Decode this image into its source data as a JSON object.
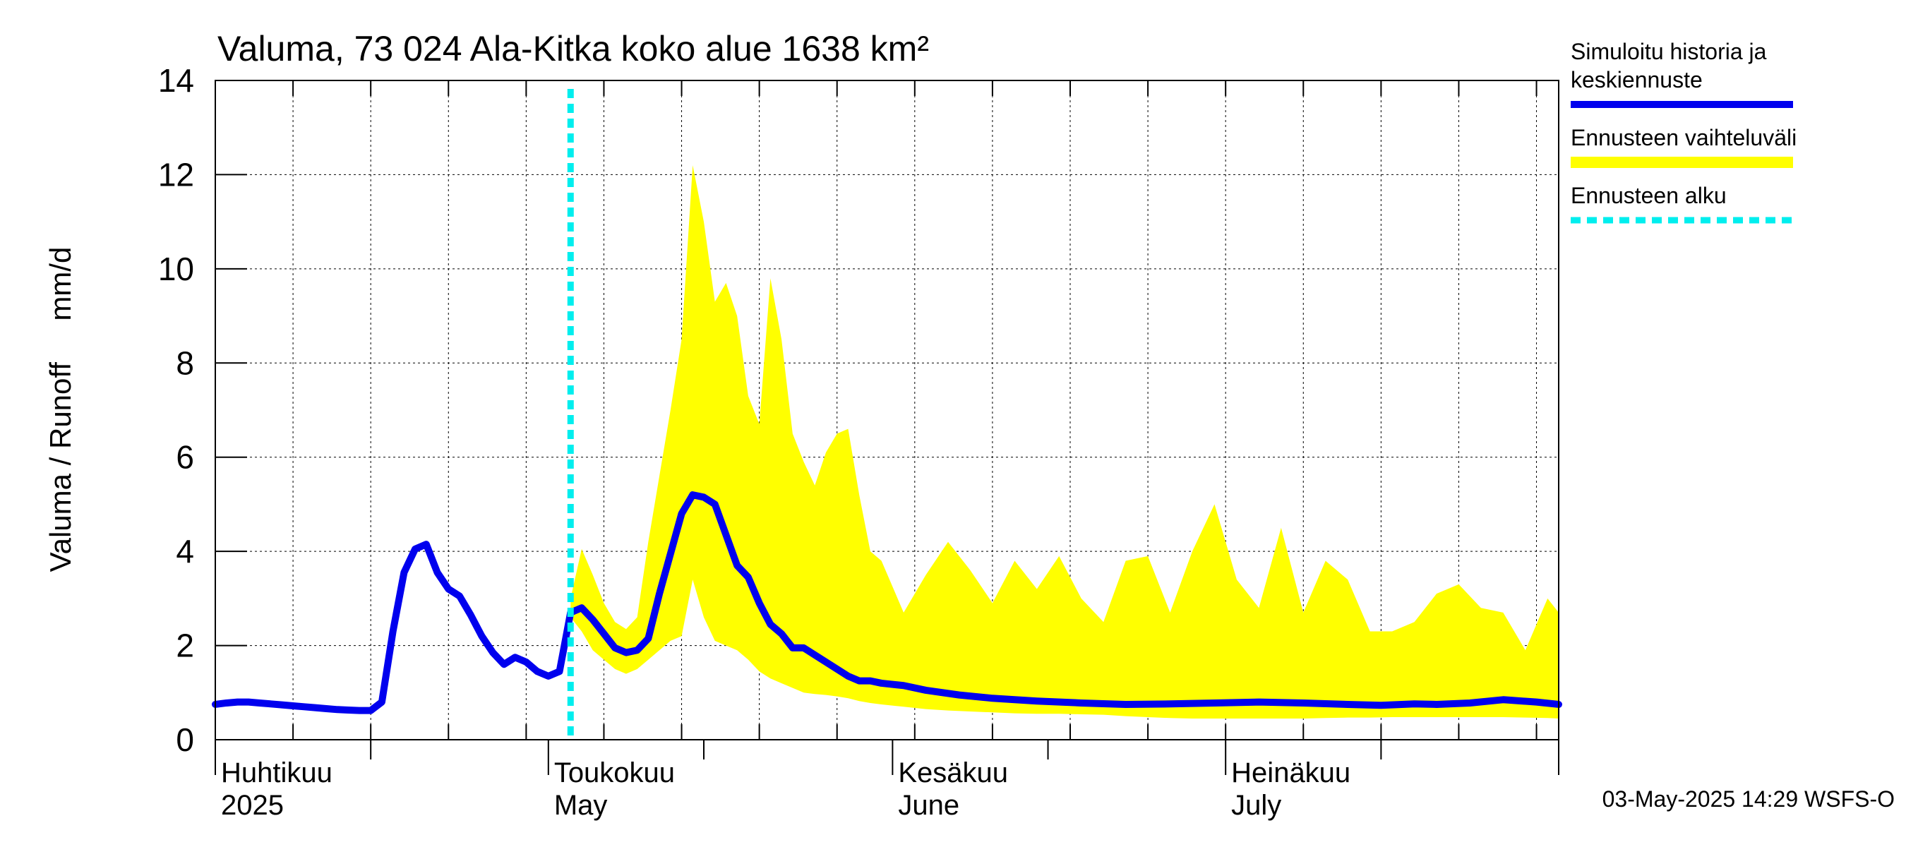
{
  "chart_data": {
    "type": "area",
    "title": "Valuma, 73 024 Ala-Kitka koko alue 1638 km²",
    "ylabel": "Valuma / Runoff     mm/d",
    "ylim": [
      0,
      14
    ],
    "yticks": [
      0,
      2,
      4,
      6,
      8,
      10,
      12,
      14
    ],
    "xlim": [
      "2025-04-01",
      "2025-07-31"
    ],
    "grid": true,
    "legend_position": "right",
    "month_labels": [
      {
        "date": "2025-04-01",
        "line1": "Huhtikuu",
        "line2": "2025"
      },
      {
        "date": "2025-05-01",
        "line1": "Toukokuu",
        "line2": "May"
      },
      {
        "date": "2025-06-01",
        "line1": "Kesäkuu",
        "line2": "June"
      },
      {
        "date": "2025-07-01",
        "line1": "Heinäkuu",
        "line2": "July"
      }
    ],
    "legend": [
      {
        "label_lines": [
          "Simuloitu historia ja",
          "keskiennuste"
        ],
        "color": "#0000ee",
        "style": "solid"
      },
      {
        "label_lines": [
          "Ennusteen vaihteluväli"
        ],
        "color": "#ffff00",
        "style": "band"
      },
      {
        "label_lines": [
          "Ennusteen alku"
        ],
        "color": "#00eeee",
        "style": "dotted"
      }
    ],
    "forecast_start": "2025-05-03",
    "series": [
      {
        "name": "Simuloitu historia ja keskiennuste",
        "color": "#0000ee",
        "x": [
          "2025-04-01",
          "2025-04-02",
          "2025-04-03",
          "2025-04-04",
          "2025-04-05",
          "2025-04-06",
          "2025-04-07",
          "2025-04-08",
          "2025-04-09",
          "2025-04-10",
          "2025-04-11",
          "2025-04-12",
          "2025-04-13",
          "2025-04-14",
          "2025-04-15",
          "2025-04-16",
          "2025-04-17",
          "2025-04-18",
          "2025-04-19",
          "2025-04-20",
          "2025-04-21",
          "2025-04-22",
          "2025-04-23",
          "2025-04-24",
          "2025-04-25",
          "2025-04-26",
          "2025-04-27",
          "2025-04-28",
          "2025-04-29",
          "2025-04-30",
          "2025-05-01",
          "2025-05-02",
          "2025-05-03",
          "2025-05-04",
          "2025-05-05",
          "2025-05-06",
          "2025-05-07",
          "2025-05-08",
          "2025-05-09",
          "2025-05-10",
          "2025-05-11",
          "2025-05-12",
          "2025-05-13",
          "2025-05-14",
          "2025-05-15",
          "2025-05-16",
          "2025-05-17",
          "2025-05-18",
          "2025-05-19",
          "2025-05-20",
          "2025-05-21",
          "2025-05-22",
          "2025-05-23",
          "2025-05-24",
          "2025-05-25",
          "2025-05-26",
          "2025-05-27",
          "2025-05-28",
          "2025-05-29",
          "2025-05-30",
          "2025-05-31",
          "2025-06-02",
          "2025-06-04",
          "2025-06-07",
          "2025-06-10",
          "2025-06-14",
          "2025-06-18",
          "2025-06-22",
          "2025-06-26",
          "2025-06-30",
          "2025-07-04",
          "2025-07-08",
          "2025-07-12",
          "2025-07-15",
          "2025-07-18",
          "2025-07-20",
          "2025-07-23",
          "2025-07-26",
          "2025-07-29",
          "2025-07-31"
        ],
        "values": [
          0.75,
          0.78,
          0.8,
          0.8,
          0.78,
          0.76,
          0.74,
          0.72,
          0.7,
          0.68,
          0.66,
          0.64,
          0.63,
          0.62,
          0.62,
          0.8,
          2.3,
          3.55,
          4.05,
          4.15,
          3.55,
          3.2,
          3.05,
          2.65,
          2.2,
          1.85,
          1.6,
          1.75,
          1.65,
          1.45,
          1.35,
          1.45,
          2.7,
          2.8,
          2.55,
          2.25,
          1.95,
          1.85,
          1.9,
          2.15,
          3.1,
          3.95,
          4.8,
          5.2,
          5.15,
          5.0,
          4.35,
          3.7,
          3.45,
          2.9,
          2.45,
          2.25,
          1.95,
          1.95,
          1.8,
          1.65,
          1.5,
          1.35,
          1.25,
          1.25,
          1.2,
          1.15,
          1.05,
          0.95,
          0.88,
          0.82,
          0.78,
          0.75,
          0.76,
          0.78,
          0.8,
          0.78,
          0.75,
          0.73,
          0.76,
          0.75,
          0.78,
          0.85,
          0.8,
          0.75
        ]
      }
    ],
    "band": {
      "name": "Ennusteen vaihteluväli",
      "color": "#ffff00",
      "x": [
        "2025-05-03",
        "2025-05-04",
        "2025-05-05",
        "2025-05-06",
        "2025-05-07",
        "2025-05-08",
        "2025-05-09",
        "2025-05-10",
        "2025-05-11",
        "2025-05-12",
        "2025-05-13",
        "2025-05-14",
        "2025-05-15",
        "2025-05-16",
        "2025-05-17",
        "2025-05-18",
        "2025-05-19",
        "2025-05-20",
        "2025-05-21",
        "2025-05-22",
        "2025-05-23",
        "2025-05-24",
        "2025-05-25",
        "2025-05-26",
        "2025-05-27",
        "2025-05-28",
        "2025-05-29",
        "2025-05-30",
        "2025-05-31",
        "2025-06-02",
        "2025-06-04",
        "2025-06-06",
        "2025-06-08",
        "2025-06-10",
        "2025-06-12",
        "2025-06-14",
        "2025-06-16",
        "2025-06-18",
        "2025-06-20",
        "2025-06-22",
        "2025-06-24",
        "2025-06-26",
        "2025-06-28",
        "2025-06-30",
        "2025-07-02",
        "2025-07-04",
        "2025-07-06",
        "2025-07-08",
        "2025-07-10",
        "2025-07-12",
        "2025-07-14",
        "2025-07-16",
        "2025-07-18",
        "2025-07-20",
        "2025-07-22",
        "2025-07-24",
        "2025-07-26",
        "2025-07-28",
        "2025-07-30",
        "2025-07-31"
      ],
      "upper": [
        3.0,
        4.05,
        3.5,
        2.9,
        2.5,
        2.35,
        2.6,
        4.2,
        5.6,
        7.0,
        8.5,
        12.2,
        11.0,
        9.3,
        9.7,
        9.0,
        7.3,
        6.7,
        9.8,
        8.5,
        6.5,
        5.9,
        5.4,
        6.1,
        6.5,
        6.6,
        5.2,
        4.0,
        3.8,
        2.7,
        3.5,
        4.2,
        3.6,
        2.9,
        3.8,
        3.2,
        3.9,
        3.0,
        2.5,
        3.8,
        3.9,
        2.7,
        4.0,
        5.0,
        3.4,
        2.8,
        4.5,
        2.7,
        3.8,
        3.4,
        2.3,
        2.3,
        2.5,
        3.1,
        3.3,
        2.8,
        2.7,
        1.9,
        3.0,
        2.7
      ],
      "lower": [
        2.6,
        2.3,
        1.9,
        1.7,
        1.5,
        1.4,
        1.5,
        1.7,
        1.9,
        2.1,
        2.2,
        3.4,
        2.6,
        2.1,
        2.0,
        1.9,
        1.7,
        1.45,
        1.3,
        1.2,
        1.1,
        1.0,
        0.97,
        0.95,
        0.92,
        0.88,
        0.82,
        0.78,
        0.75,
        0.7,
        0.65,
        0.62,
        0.6,
        0.58,
        0.56,
        0.55,
        0.55,
        0.54,
        0.53,
        0.5,
        0.48,
        0.46,
        0.45,
        0.45,
        0.45,
        0.45,
        0.45,
        0.45,
        0.46,
        0.47,
        0.47,
        0.48,
        0.48,
        0.48,
        0.48,
        0.48,
        0.48,
        0.47,
        0.46,
        0.45
      ]
    },
    "timestamp": "03-May-2025 14:29 WSFS-O"
  }
}
